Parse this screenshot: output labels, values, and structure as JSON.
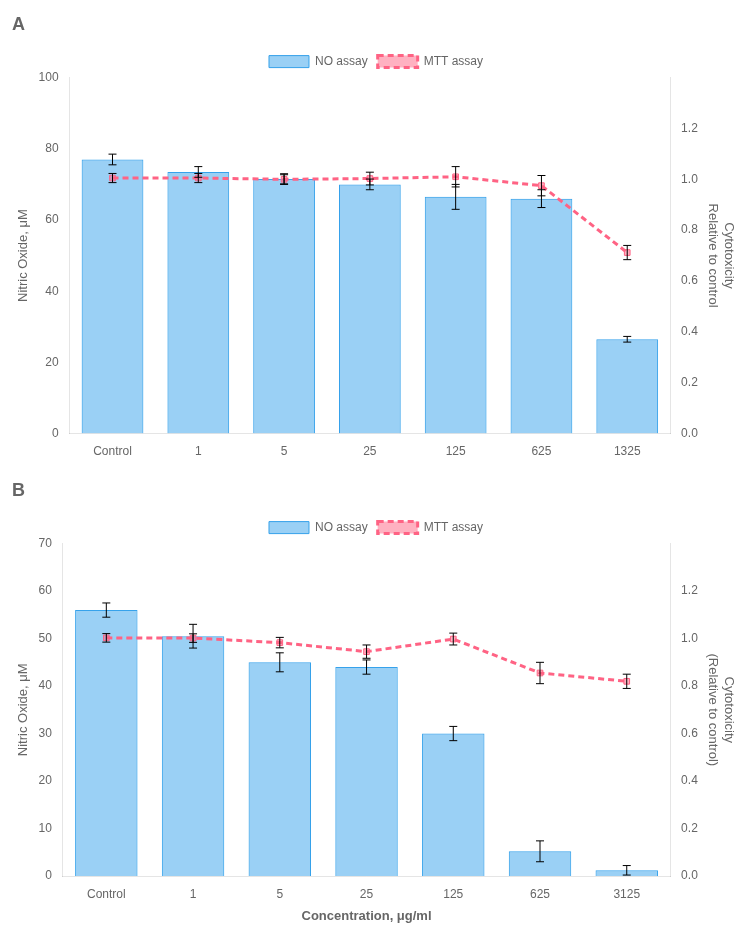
{
  "chart_data": [
    {
      "type": "bar",
      "title": "A",
      "categories": [
        "Control",
        "1",
        "5",
        "25",
        "125",
        "625",
        "1325"
      ],
      "series": [
        {
          "name": "NO assay",
          "type": "bar",
          "values": [
            77.0,
            73.5,
            71.5,
            70.0,
            66.5,
            66.0,
            26.5
          ],
          "errors": [
            1.5,
            1.5,
            1.5,
            1.5,
            3.5,
            2.5,
            0.8
          ]
        },
        {
          "name": "MTT assay",
          "type": "line",
          "axis": "y2",
          "marker": "square",
          "line_style": "dashed",
          "values": [
            1.005,
            1.005,
            1.0,
            1.003,
            1.01,
            0.975,
            0.712
          ],
          "errors": [
            0.018,
            0.018,
            0.018,
            0.025,
            0.04,
            0.04,
            0.028
          ]
        }
      ],
      "ylabel": "Nitric Oxide, μM",
      "y2label": "Cytotoxicity\nRelative to control",
      "ylim": [
        0,
        100
      ],
      "yticks": [
        0,
        20,
        40,
        60,
        80,
        100
      ],
      "y2lim": [
        0.0,
        1.4
      ],
      "y2ticks": [
        {
          "value": 0,
          "label": "0.0"
        },
        0.2,
        0.4,
        0.6,
        0.8,
        {
          "value": 1,
          "label": "1.0"
        },
        1.2
      ],
      "grid": false,
      "legend": "top"
    },
    {
      "type": "bar",
      "title": "B",
      "categories": [
        "Control",
        "1",
        "5",
        "25",
        "125",
        "625",
        "3125"
      ],
      "series": [
        {
          "name": "NO assay",
          "type": "bar",
          "values": [
            56.0,
            50.5,
            45.0,
            44.0,
            30.0,
            5.2,
            1.2
          ],
          "errors": [
            1.5,
            2.5,
            2.0,
            1.5,
            1.5,
            2.2,
            1.0
          ]
        },
        {
          "name": "MTT assay",
          "type": "line",
          "axis": "y2",
          "marker": "square",
          "line_style": "dashed",
          "values": [
            1.003,
            1.002,
            0.983,
            0.945,
            0.998,
            0.855,
            0.82
          ],
          "errors": [
            0.018,
            0.018,
            0.022,
            0.028,
            0.025,
            0.045,
            0.03
          ]
        }
      ],
      "ylabel": "Nitric Oxide, μM",
      "y2label": "Cytotoxicity\n(Relative to control)",
      "xlabel": "Concentration, μg/ml",
      "ylim": [
        0,
        70
      ],
      "yticks": [
        0,
        10,
        20,
        30,
        40,
        50,
        60,
        70
      ],
      "y2lim": [
        0.0,
        1.4
      ],
      "y2ticks": [
        {
          "value": 0,
          "label": "0.0"
        },
        0.2,
        0.4,
        0.6,
        0.8,
        {
          "value": 1,
          "label": "1.0"
        },
        1.2
      ],
      "grid": false,
      "legend": "top"
    }
  ]
}
